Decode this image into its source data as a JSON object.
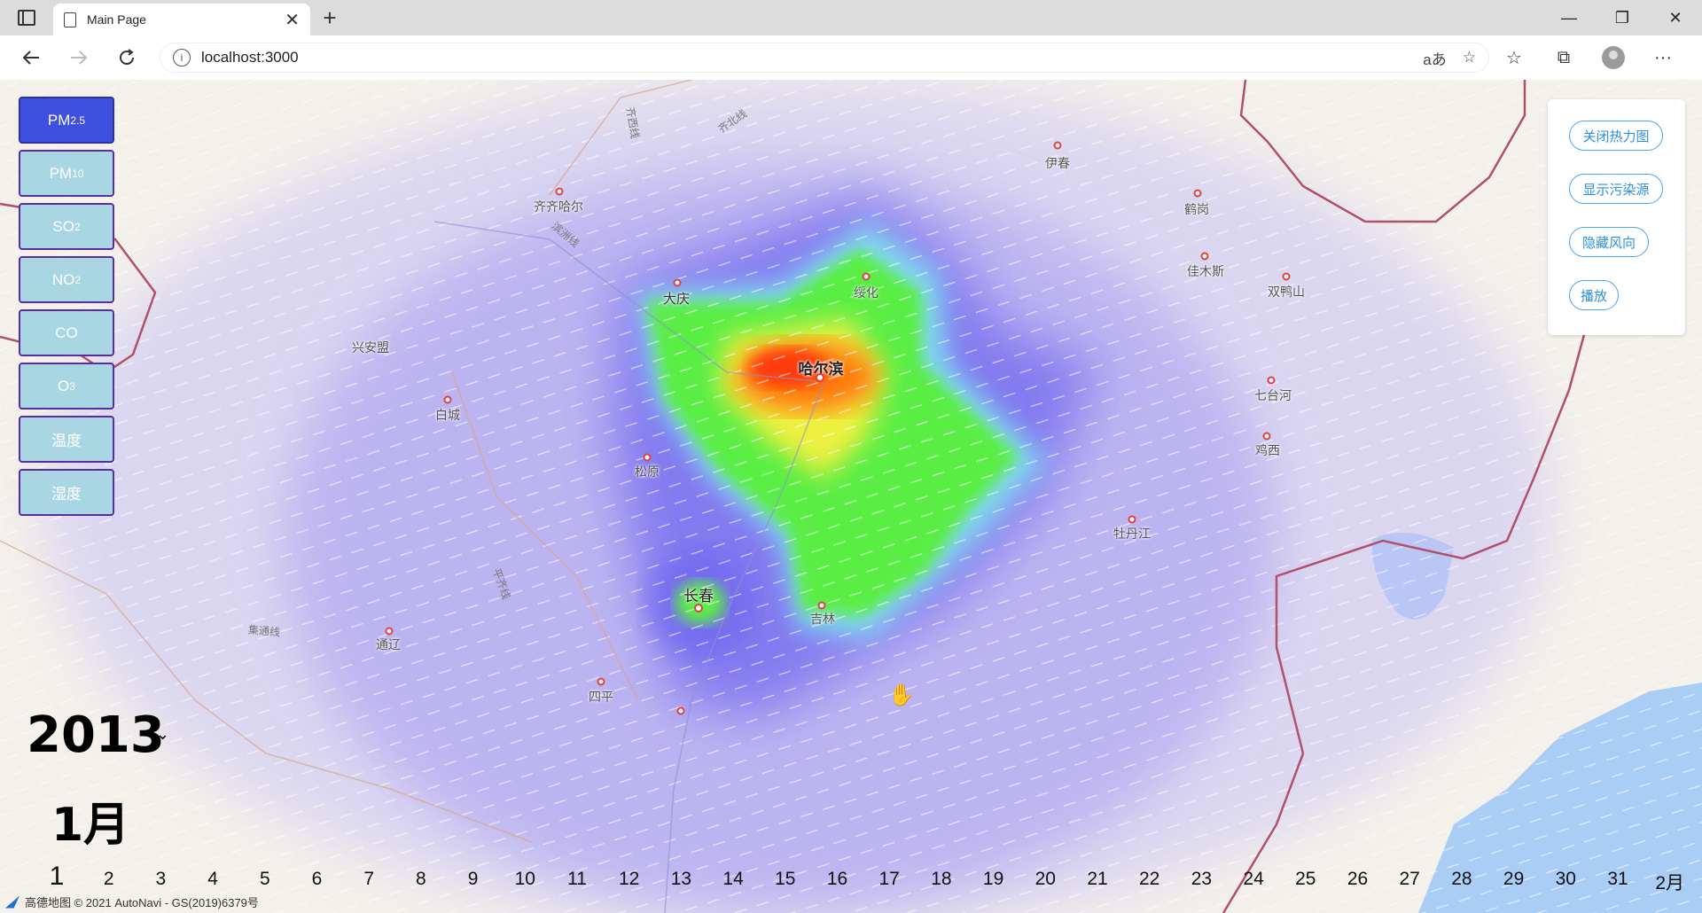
{
  "browser": {
    "tab_title": "Main Page",
    "tab_close": "✕",
    "new_tab": "+",
    "url": "localhost:3000",
    "read_aloud": "aあ",
    "window_controls": {
      "minimize": "—",
      "restore": "❐",
      "close": "✕"
    }
  },
  "pollutants": [
    {
      "label": "PM",
      "sub": "2.5",
      "active": true
    },
    {
      "label": "PM",
      "sub": "10",
      "active": false
    },
    {
      "label": "SO",
      "sub": "2",
      "active": false
    },
    {
      "label": "NO",
      "sub": "2",
      "active": false
    },
    {
      "label": "CO",
      "sub": "",
      "active": false
    },
    {
      "label": "O",
      "sub": "3",
      "active": false
    },
    {
      "label": "温度",
      "sub": "",
      "active": false
    },
    {
      "label": "湿度",
      "sub": "",
      "active": false
    }
  ],
  "controls": {
    "close_heatmap": "关闭热力图",
    "show_sources": "显示污染源",
    "hide_wind": "隐藏风向",
    "play": "播放"
  },
  "time": {
    "year": "2013",
    "year_caret": "⌄",
    "month": "1月",
    "current_day": "1",
    "days": [
      "1",
      "2",
      "3",
      "4",
      "5",
      "6",
      "7",
      "8",
      "9",
      "10",
      "11",
      "12",
      "13",
      "14",
      "15",
      "16",
      "17",
      "18",
      "19",
      "20",
      "21",
      "22",
      "23",
      "24",
      "25",
      "26",
      "27",
      "28",
      "29",
      "30",
      "31",
      "2月"
    ]
  },
  "map": {
    "cities": [
      {
        "name": "伊春"
      },
      {
        "name": "齐齐哈尔"
      },
      {
        "name": "鹤岗"
      },
      {
        "name": "大庆"
      },
      {
        "name": "绥化"
      },
      {
        "name": "佳木斯"
      },
      {
        "name": "双鸭山"
      },
      {
        "name": "兴安盟"
      },
      {
        "name": "哈尔滨"
      },
      {
        "name": "七台河"
      },
      {
        "name": "白城"
      },
      {
        "name": "鸡西"
      },
      {
        "name": "松原"
      },
      {
        "name": "牡丹江"
      },
      {
        "name": "长春"
      },
      {
        "name": "吉林"
      },
      {
        "name": "通辽"
      },
      {
        "name": "四平"
      }
    ],
    "railways": [
      "齐北线",
      "滨洲线",
      "集通线",
      "平齐线"
    ],
    "copyright": "高德地图 © 2021 AutoNavi - GS(2019)6379号",
    "colors": {
      "heat_low": "#8a80f0",
      "heat_mid": "#6af05a",
      "heat_high": "#ff5a10",
      "border": "#b0506a",
      "water": "#a9cdf5"
    }
  }
}
